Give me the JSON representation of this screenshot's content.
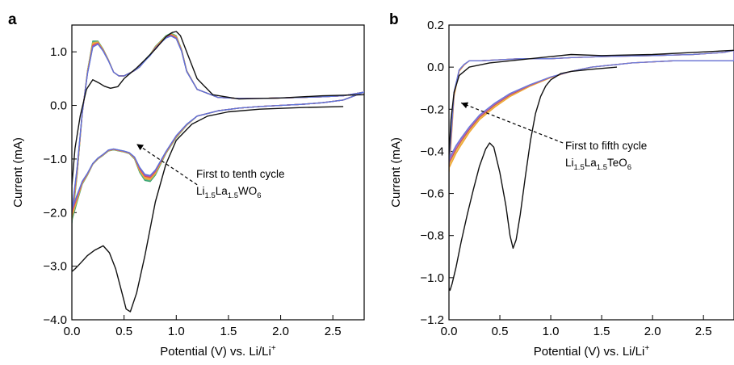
{
  "chart_data": [
    {
      "panel_label": "a",
      "type": "line",
      "xlabel": "Potential (V) vs. Li/Li",
      "xlabel_sup": "+",
      "ylabel": "Current (mA)",
      "xlim": [
        0,
        2.8
      ],
      "ylim": [
        -4.0,
        1.5
      ],
      "xticks": [
        0.0,
        0.5,
        1.0,
        1.5,
        2.0,
        2.5
      ],
      "xtick_labels": [
        "0.0",
        "0.5",
        "1.0",
        "1.5",
        "2.0",
        "2.5"
      ],
      "yticks": [
        -4.0,
        -3.0,
        -2.0,
        -1.0,
        0.0,
        1.0
      ],
      "ytick_labels": [
        "−4.0",
        "−3.0",
        "−2.0",
        "−1.0",
        "0.0",
        "1.0"
      ],
      "annotation": {
        "line1": "First to tenth cycle",
        "formula": [
          [
            "Li",
            ""
          ],
          [
            "1.5",
            "sub"
          ],
          [
            "La",
            ""
          ],
          [
            "1.5",
            "sub"
          ],
          [
            "WO",
            ""
          ],
          [
            "6",
            "sub"
          ]
        ],
        "arrow_from": [
          1.2,
          -1.48
        ],
        "arrow_to": [
          0.62,
          -0.72
        ]
      },
      "first_cycle": {
        "color": "#111111",
        "x": [
          2.6,
          2.2,
          1.8,
          1.5,
          1.3,
          1.15,
          1.0,
          0.9,
          0.8,
          0.7,
          0.62,
          0.56,
          0.52,
          0.48,
          0.42,
          0.36,
          0.3,
          0.22,
          0.15,
          0.08,
          0.03,
          0.0,
          0.0,
          0.03,
          0.08,
          0.14,
          0.2,
          0.26,
          0.31,
          0.37,
          0.44,
          0.5,
          0.56,
          0.62,
          0.7,
          0.8,
          0.9,
          0.96,
          1.0,
          1.04,
          1.1,
          1.2,
          1.35,
          1.6,
          2.0,
          2.4,
          2.8
        ],
        "y": [
          -0.02,
          -0.04,
          -0.07,
          -0.12,
          -0.2,
          -0.35,
          -0.65,
          -1.1,
          -1.8,
          -2.8,
          -3.5,
          -3.85,
          -3.8,
          -3.5,
          -3.05,
          -2.75,
          -2.62,
          -2.7,
          -2.8,
          -2.95,
          -3.05,
          -3.1,
          -1.5,
          -0.8,
          -0.2,
          0.3,
          0.48,
          0.42,
          0.36,
          0.32,
          0.35,
          0.5,
          0.6,
          0.7,
          0.85,
          1.05,
          1.28,
          1.36,
          1.38,
          1.3,
          1.0,
          0.5,
          0.2,
          0.12,
          0.14,
          0.18,
          0.2
        ]
      },
      "cycles": [
        {
          "color": "#2f9e62",
          "s": 1.0
        },
        {
          "color": "#4cb08a",
          "s": 0.95
        },
        {
          "color": "#d4a640",
          "s": 0.9
        },
        {
          "color": "#e8c048",
          "s": 0.86
        },
        {
          "color": "#ec8a3a",
          "s": 0.82
        },
        {
          "color": "#f2a84c",
          "s": 0.78
        },
        {
          "color": "#e04a3a",
          "s": 0.74
        },
        {
          "color": "#c24aa0",
          "s": 0.7
        },
        {
          "color": "#8e63c8",
          "s": 0.66
        },
        {
          "color": "#5a74d8",
          "s": 0.62
        }
      ],
      "cycle_template": {
        "x": [
          0.0,
          0.05,
          0.1,
          0.15,
          0.2,
          0.25,
          0.3,
          0.35,
          0.4,
          0.45,
          0.5,
          0.55,
          0.6,
          0.65,
          0.7,
          0.75,
          0.8,
          0.85,
          0.9,
          0.95,
          1.0,
          1.05,
          1.1,
          1.2,
          1.4,
          1.6,
          1.8,
          2.0,
          2.2,
          2.4,
          2.6,
          2.8,
          2.8,
          2.6,
          2.4,
          2.2,
          2.0,
          1.8,
          1.6,
          1.4,
          1.2,
          1.1,
          1.0,
          0.9,
          0.8,
          0.75,
          0.7,
          0.65,
          0.6,
          0.55,
          0.5,
          0.45,
          0.4,
          0.35,
          0.3,
          0.25,
          0.2,
          0.15,
          0.1,
          0.05,
          0.0
        ],
        "y_base": [
          -1.6,
          -0.9,
          -0.1,
          0.5,
          0.9,
          1.05,
          0.95,
          0.8,
          0.62,
          0.55,
          0.55,
          0.6,
          0.65,
          0.72,
          0.8,
          0.9,
          1.0,
          1.1,
          1.18,
          1.2,
          1.15,
          0.95,
          0.6,
          0.3,
          0.15,
          0.13,
          0.13,
          0.14,
          0.15,
          0.16,
          0.18,
          0.25,
          0.25,
          0.1,
          0.05,
          0.02,
          0.0,
          -0.02,
          -0.05,
          -0.1,
          -0.2,
          -0.32,
          -0.5,
          -0.8,
          -1.05,
          -1.12,
          -1.1,
          -1.0,
          -0.9,
          -0.85,
          -0.82,
          -0.8,
          -0.78,
          -0.8,
          -0.88,
          -0.95,
          -1.05,
          -1.2,
          -1.32,
          -1.45,
          -1.55
        ],
        "y_amp": [
          -0.6,
          -0.4,
          -0.05,
          0.15,
          0.3,
          0.15,
          0.1,
          0.05,
          0.0,
          0.0,
          0.0,
          0.0,
          0.0,
          0.0,
          0.05,
          0.05,
          0.1,
          0.1,
          0.12,
          0.15,
          0.15,
          0.1,
          0.05,
          0.0,
          0.0,
          0.0,
          0.0,
          0.0,
          0.0,
          0.0,
          0.0,
          0.0,
          0.0,
          0.0,
          0.0,
          0.0,
          0.0,
          0.0,
          0.0,
          0.0,
          0.0,
          -0.05,
          -0.1,
          -0.1,
          -0.25,
          -0.3,
          -0.3,
          -0.25,
          -0.1,
          -0.05,
          -0.05,
          -0.05,
          -0.05,
          -0.05,
          -0.05,
          -0.05,
          -0.05,
          -0.1,
          -0.15,
          -0.35,
          -0.6
        ]
      }
    },
    {
      "panel_label": "b",
      "type": "line",
      "xlabel": "Potential (V) vs. Li/Li",
      "xlabel_sup": "+",
      "ylabel": "Current (mA)",
      "xlim": [
        0,
        2.8
      ],
      "ylim": [
        -1.2,
        0.2
      ],
      "xticks": [
        0.0,
        0.5,
        1.0,
        1.5,
        2.0,
        2.5
      ],
      "xtick_labels": [
        "0.0",
        "0.5",
        "1.0",
        "1.5",
        "2.0",
        "2.5"
      ],
      "yticks": [
        -1.2,
        -1.0,
        -0.8,
        -0.6,
        -0.4,
        -0.2,
        0.0,
        0.2
      ],
      "ytick_labels": [
        "−1.2",
        "−1.0",
        "−0.8",
        "−0.6",
        "−0.4",
        "−0.2",
        "0.0",
        "0.2"
      ],
      "annotation": {
        "line1": "First to fifth cycle",
        "formula": [
          [
            "Li",
            ""
          ],
          [
            "1.5",
            "sub"
          ],
          [
            "La",
            ""
          ],
          [
            "1.5",
            "sub"
          ],
          [
            "TeO",
            ""
          ],
          [
            "6",
            "sub"
          ]
        ],
        "arrow_from": [
          1.12,
          -0.36
        ],
        "arrow_to": [
          0.12,
          -0.17
        ]
      },
      "first_cycle": {
        "color": "#111111",
        "x": [
          1.65,
          1.4,
          1.2,
          1.1,
          1.0,
          0.95,
          0.9,
          0.85,
          0.8,
          0.75,
          0.7,
          0.66,
          0.63,
          0.6,
          0.56,
          0.5,
          0.44,
          0.4,
          0.36,
          0.3,
          0.24,
          0.18,
          0.12,
          0.07,
          0.03,
          0.01,
          0.0,
          0.0,
          0.02,
          0.05,
          0.1,
          0.2,
          0.4,
          0.6,
          0.8,
          1.0,
          1.2,
          1.5,
          2.0,
          2.4,
          2.8
        ],
        "y": [
          0.0,
          -0.01,
          -0.02,
          -0.03,
          -0.06,
          -0.09,
          -0.14,
          -0.22,
          -0.35,
          -0.52,
          -0.7,
          -0.82,
          -0.86,
          -0.8,
          -0.66,
          -0.5,
          -0.38,
          -0.36,
          -0.39,
          -0.47,
          -0.58,
          -0.7,
          -0.83,
          -0.95,
          -1.03,
          -1.06,
          -1.05,
          -0.42,
          -0.25,
          -0.12,
          -0.04,
          0.0,
          0.02,
          0.03,
          0.04,
          0.05,
          0.06,
          0.055,
          0.06,
          0.07,
          0.08
        ]
      },
      "cycles": [
        {
          "color": "#f0a030",
          "s": 1.0
        },
        {
          "color": "#e8c048",
          "s": 0.9
        },
        {
          "color": "#d05050",
          "s": 0.8
        },
        {
          "color": "#9a6ad0",
          "s": 0.7
        },
        {
          "color": "#6a7ad8",
          "s": 0.62
        }
      ],
      "cycle_template": {
        "x": [
          0.0,
          0.02,
          0.05,
          0.1,
          0.15,
          0.2,
          0.3,
          0.5,
          0.7,
          1.0,
          1.2,
          1.5,
          2.0,
          2.4,
          2.7,
          2.8,
          2.8,
          2.6,
          2.2,
          1.8,
          1.4,
          1.2,
          1.0,
          0.8,
          0.6,
          0.45,
          0.3,
          0.2,
          0.12,
          0.07,
          0.03,
          0.0
        ],
        "y_base": [
          -0.38,
          -0.25,
          -0.08,
          0.0,
          0.02,
          0.03,
          0.03,
          0.035,
          0.04,
          0.04,
          0.045,
          0.05,
          0.055,
          0.06,
          0.07,
          0.08,
          0.03,
          0.03,
          0.03,
          0.02,
          0.0,
          -0.02,
          -0.04,
          -0.07,
          -0.1,
          -0.14,
          -0.19,
          -0.24,
          -0.28,
          -0.31,
          -0.34,
          -0.36
        ],
        "y_amp": [
          -0.12,
          -0.12,
          -0.06,
          -0.02,
          -0.01,
          0.0,
          0.0,
          0.0,
          0.0,
          0.0,
          0.0,
          0.0,
          0.0,
          0.0,
          0.0,
          0.0,
          0.0,
          0.0,
          0.0,
          0.0,
          0.0,
          0.0,
          -0.01,
          -0.02,
          -0.04,
          -0.05,
          -0.06,
          -0.07,
          -0.09,
          -0.1,
          -0.11,
          -0.12
        ]
      }
    }
  ]
}
